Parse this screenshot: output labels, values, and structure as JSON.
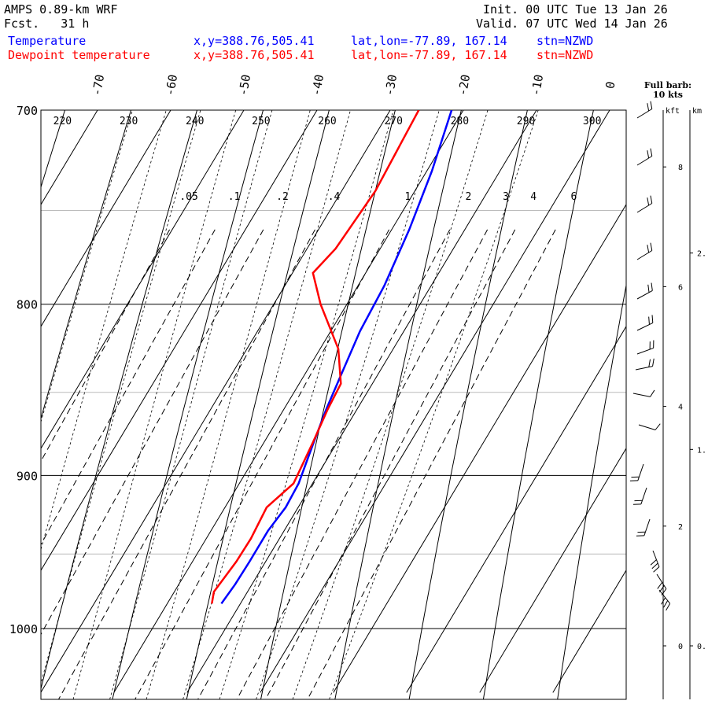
{
  "header": {
    "title": "AMPS 0.89-km WRF",
    "fcst": "Fcst.   31 h",
    "init": "Init. 00 UTC Tue 13 Jan 26",
    "valid": "Valid. 07 UTC Wed 14 Jan 26",
    "temperature_label": "Temperature",
    "dewpoint_label": "Dewpoint temperature",
    "xy": "x,y=388.76,505.41",
    "latlon": "lat,lon=-77.89, 167.14",
    "stn": "stn=NZWD"
  },
  "barb_legend": {
    "line1": "Full barb:",
    "line2": "10 kts"
  },
  "height_axis": {
    "kft_label": "kft",
    "km_label": "km"
  },
  "colors": {
    "temperature": "#0000ff",
    "dewpoint": "#ff0000",
    "grid": "#000000",
    "minor": "#bbbbbb"
  },
  "chart_data": {
    "type": "skew-t",
    "ylabel_values": [
      "700",
      "800",
      "900",
      "1000"
    ],
    "pressure_range": [
      700,
      1045
    ],
    "skewed_temperature_ticks": [
      "-70",
      "-60",
      "-50",
      "-40",
      "-30",
      "-20",
      "-10",
      "0"
    ],
    "dry_adiabat_labels": [
      "220",
      "230",
      "240",
      "250",
      "260",
      "270",
      "280",
      "290",
      "300"
    ],
    "mixing_ratio_labels": [
      ".05",
      ".1",
      ".2",
      ".4",
      "1",
      "2",
      "3",
      "4",
      "6"
    ],
    "kft_ticks": [
      "0",
      "2",
      "4",
      "6",
      "8"
    ],
    "km_ticks": [
      "0.",
      "1.",
      "2."
    ],
    "series": [
      {
        "name": "Temperature",
        "color": "#0000ff",
        "points": [
          {
            "p": 983,
            "t": -12.6
          },
          {
            "p": 970,
            "t": -12.3
          },
          {
            "p": 955,
            "t": -12.2
          },
          {
            "p": 935,
            "t": -12.2
          },
          {
            "p": 920,
            "t": -11.7
          },
          {
            "p": 905,
            "t": -11.9
          },
          {
            "p": 880,
            "t": -13.2
          },
          {
            "p": 860,
            "t": -14.2
          },
          {
            "p": 840,
            "t": -15.0
          },
          {
            "p": 815,
            "t": -16.0
          },
          {
            "p": 790,
            "t": -16.4
          },
          {
            "p": 760,
            "t": -17.6
          },
          {
            "p": 730,
            "t": -19.3
          },
          {
            "p": 700,
            "t": -21.6
          }
        ]
      },
      {
        "name": "Dewpoint temperature",
        "color": "#ff0000",
        "points": [
          {
            "p": 983,
            "t": -13.9
          },
          {
            "p": 975,
            "t": -14.6
          },
          {
            "p": 955,
            "t": -14.0
          },
          {
            "p": 940,
            "t": -13.9
          },
          {
            "p": 920,
            "t": -14.3
          },
          {
            "p": 905,
            "t": -12.6
          },
          {
            "p": 880,
            "t": -13.3
          },
          {
            "p": 860,
            "t": -14.0
          },
          {
            "p": 845,
            "t": -14.3
          },
          {
            "p": 825,
            "t": -17.5
          },
          {
            "p": 800,
            "t": -23.6
          },
          {
            "p": 783,
            "t": -27.2
          },
          {
            "p": 770,
            "t": -26.1
          },
          {
            "p": 740,
            "t": -25.4
          },
          {
            "p": 700,
            "t": -26.1
          }
        ]
      }
    ]
  }
}
